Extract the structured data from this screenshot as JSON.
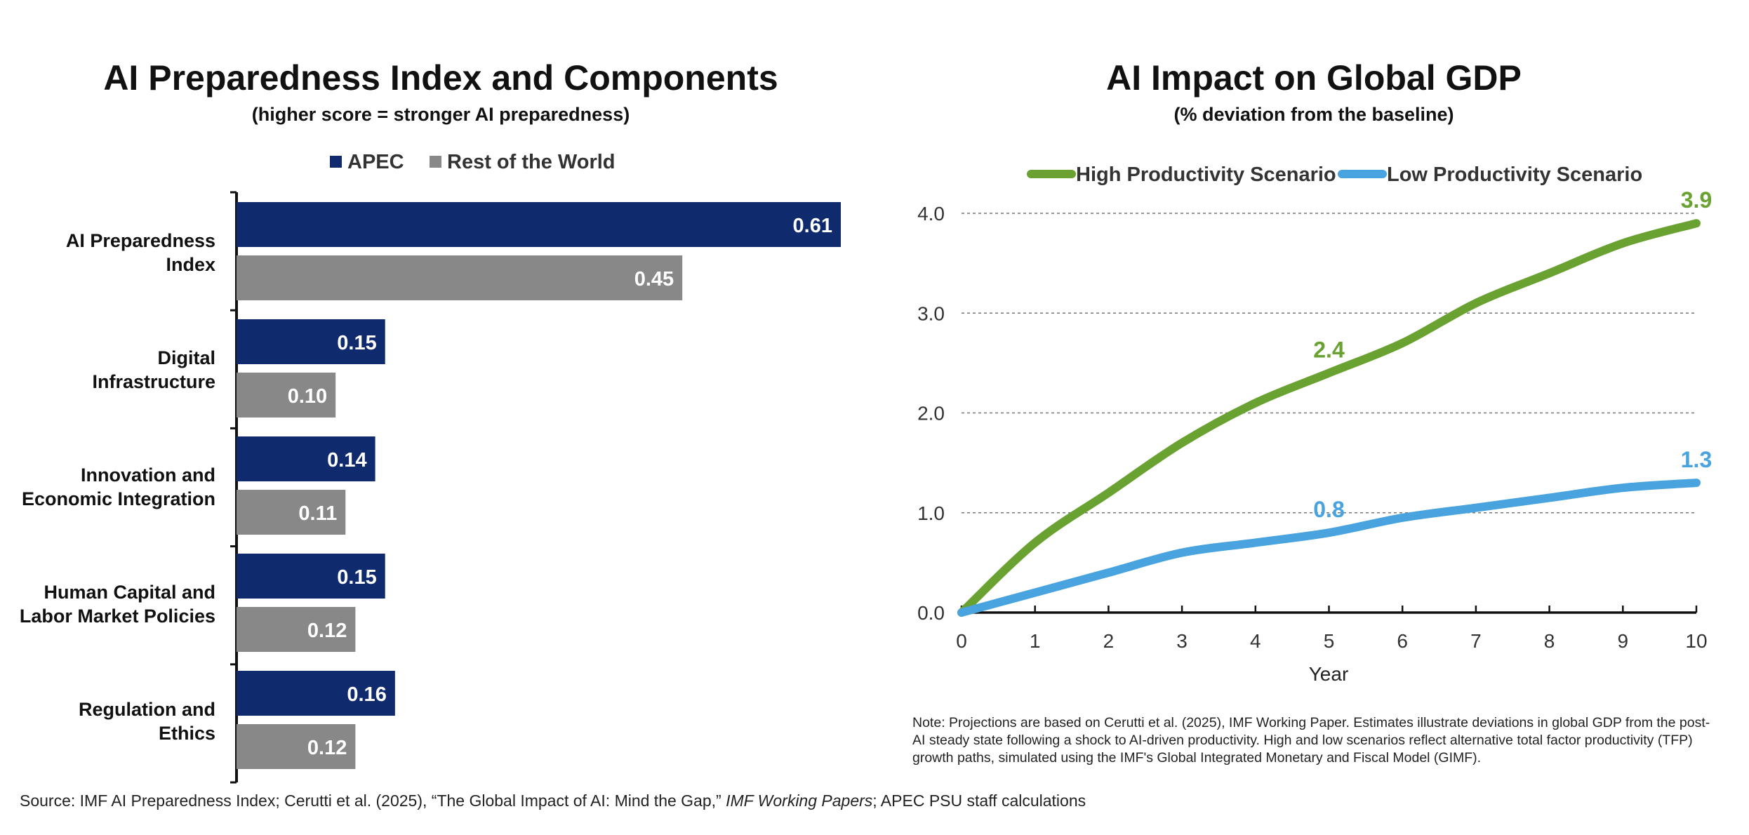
{
  "charts": {
    "left": {
      "title": "AI Preparedness Index and Components",
      "subtitle": "(higher score = stronger AI preparedness)"
    },
    "right": {
      "title": "AI Impact on Global GDP",
      "subtitle": "(% deviation from the baseline)"
    }
  },
  "note": "Note: Projections are based on Cerutti et al. (2025), IMF Working Paper. Estimates illustrate deviations in global GDP from the post-AI steady state following a shock to AI-driven productivity. High and low scenarios reflect alternative total factor productivity (TFP) growth paths, simulated using the IMF's Global Integrated Monetary and Fiscal Model (GIMF).",
  "source": {
    "pre": "Source: IMF AI Preparedness Index; Cerutti et al. (2025), “The Global Impact of AI: Mind the Gap,” ",
    "italic": "IMF Working Papers",
    "post": "; APEC PSU staff calculations"
  },
  "chart_data": [
    {
      "type": "bar",
      "orientation": "horizontal",
      "title": "AI Preparedness Index and Components",
      "subtitle": "(higher score = stronger AI preparedness)",
      "categories": [
        [
          "AI Preparedness",
          "Index"
        ],
        [
          "Digital",
          "Infrastructure"
        ],
        [
          "Innovation and",
          "Economic Integration"
        ],
        [
          "Human Capital and",
          "Labor Market Policies"
        ],
        [
          "Regulation and",
          "Ethics"
        ]
      ],
      "series": [
        {
          "name": "APEC",
          "values": [
            0.61,
            0.15,
            0.14,
            0.15,
            0.16
          ],
          "labels": [
            "0.61",
            "0.15",
            "0.14",
            "0.15",
            "0.16"
          ],
          "color": "#102a6e"
        },
        {
          "name": "Rest of the World",
          "values": [
            0.45,
            0.1,
            0.11,
            0.12,
            0.12
          ],
          "labels": [
            "0.45",
            "0.10",
            "0.11",
            "0.12",
            "0.12"
          ],
          "color": "#888888"
        }
      ],
      "legend_position": "top",
      "xlim": [
        0,
        0.61
      ]
    },
    {
      "type": "line",
      "title": "AI Impact on Global GDP",
      "subtitle": "(% deviation from the baseline)",
      "xlabel": "Year",
      "ylabel": "",
      "x": [
        0,
        1,
        2,
        3,
        4,
        5,
        6,
        7,
        8,
        9,
        10
      ],
      "xticks": [
        "0",
        "1",
        "2",
        "3",
        "4",
        "5",
        "6",
        "7",
        "8",
        "9",
        "10"
      ],
      "yticks": [
        "0.0",
        "1.0",
        "2.0",
        "3.0",
        "4.0"
      ],
      "ylim": [
        0,
        4.0
      ],
      "xlim": [
        0,
        10
      ],
      "grid": "horizontal dashed",
      "legend_position": "top",
      "series": [
        {
          "name": "High Productivity Scenario",
          "color": "#6aa232",
          "values": [
            0.0,
            0.7,
            1.2,
            1.7,
            2.1,
            2.4,
            2.7,
            3.1,
            3.4,
            3.7,
            3.9
          ]
        },
        {
          "name": "Low Productivity Scenario",
          "color": "#48a3df",
          "values": [
            0.0,
            0.2,
            0.4,
            0.6,
            0.7,
            0.8,
            0.95,
            1.05,
            1.15,
            1.25,
            1.3
          ]
        }
      ],
      "annotations": [
        {
          "series": 0,
          "x": 5,
          "text": "2.4"
        },
        {
          "series": 0,
          "x": 10,
          "text": "3.9"
        },
        {
          "series": 1,
          "x": 5,
          "text": "0.8"
        },
        {
          "series": 1,
          "x": 10,
          "text": "1.3"
        }
      ]
    }
  ]
}
